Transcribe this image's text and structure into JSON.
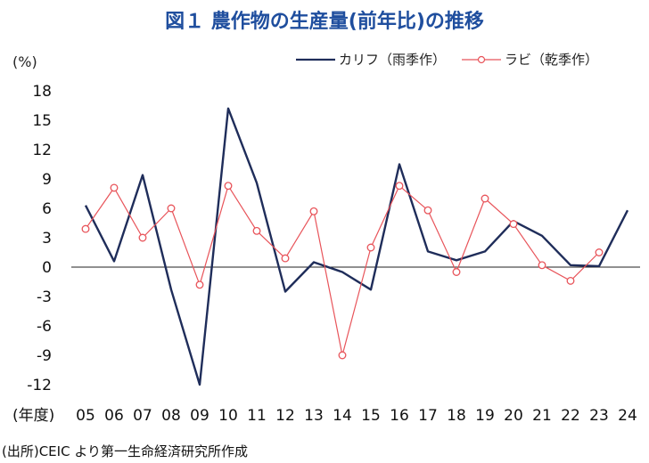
{
  "title": "図１ 農作物の生産量(前年比)の推移",
  "unit_label": "(%)",
  "source": "(出所)CEIC より第一生命経済研究所作成",
  "colors": {
    "title": "#1f4e9e",
    "kharif": "#1f2d5a",
    "rabi": "#e8545a",
    "axis": "#111111"
  },
  "chart_data": {
    "type": "line",
    "title": "図１ 農作物の生産量(前年比)の推移",
    "ylabel": "(%)",
    "xlabel": "(年度)",
    "ylim": [
      -12,
      18
    ],
    "yticks": [
      18,
      15,
      12,
      9,
      6,
      3,
      0,
      -3,
      -6,
      -9,
      -12
    ],
    "categories": [
      "05",
      "06",
      "07",
      "08",
      "09",
      "10",
      "11",
      "12",
      "13",
      "14",
      "15",
      "16",
      "17",
      "18",
      "19",
      "20",
      "21",
      "22",
      "23",
      "24"
    ],
    "legend_position": "top-right",
    "grid": false,
    "series": [
      {
        "name": "カリフ（雨季作）",
        "color": "#1f2d5a",
        "marker": "none",
        "values": [
          6.3,
          0.6,
          9.4,
          -2.3,
          -12.0,
          16.2,
          8.6,
          -2.5,
          0.5,
          -0.5,
          -2.3,
          10.5,
          1.6,
          0.7,
          1.6,
          4.7,
          3.2,
          0.2,
          0.1,
          5.8
        ]
      },
      {
        "name": "ラビ（乾季作）",
        "color": "#e8545a",
        "marker": "circle",
        "values": [
          3.9,
          8.1,
          3.0,
          6.0,
          -1.8,
          8.3,
          3.7,
          0.9,
          5.7,
          -9.0,
          2.0,
          8.3,
          5.8,
          -0.5,
          7.0,
          4.4,
          0.2,
          -1.4,
          1.5,
          null
        ]
      }
    ]
  }
}
